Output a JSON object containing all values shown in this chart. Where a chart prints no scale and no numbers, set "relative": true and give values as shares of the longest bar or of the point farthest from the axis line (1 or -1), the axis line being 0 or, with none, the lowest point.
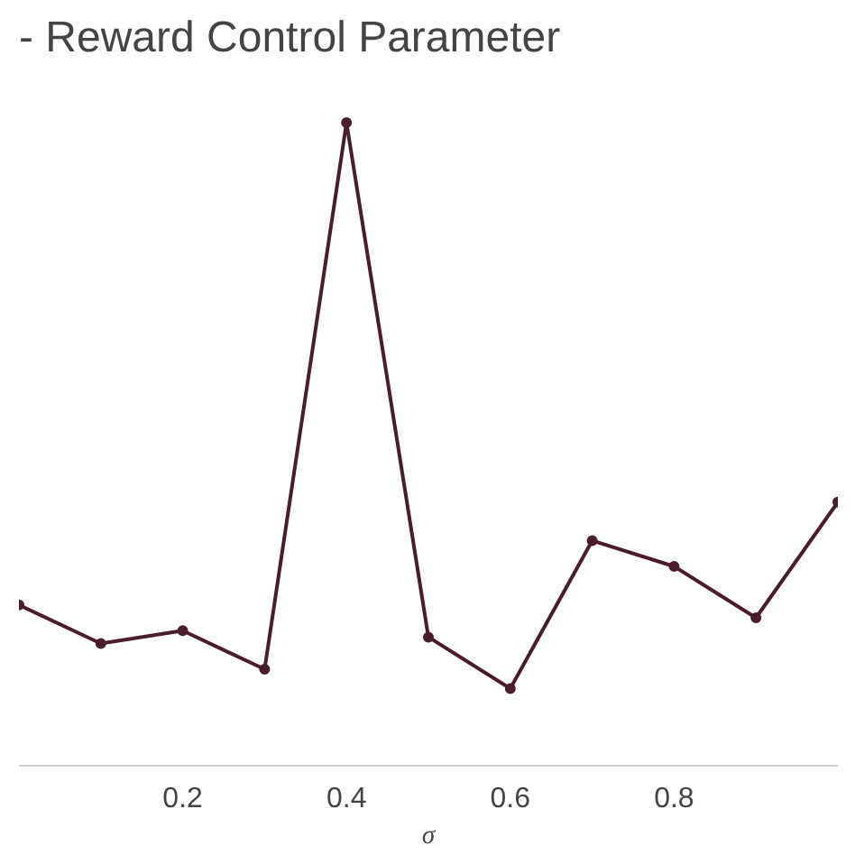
{
  "chart_data": {
    "type": "line",
    "title": "- Reward Control Parameter",
    "xlabel": "σ",
    "relative": true,
    "x": [
      0.0,
      0.1,
      0.2,
      0.3,
      0.4,
      0.5,
      0.6,
      0.7,
      0.8,
      0.9,
      1.0
    ],
    "series": [
      {
        "color": "#4b1d2b",
        "values": [
          0.25,
          0.19,
          0.21,
          0.15,
          1,
          0.2,
          0.12,
          0.35,
          0.31,
          0.23,
          0.41
        ]
      }
    ],
    "xlim": [
      0,
      1
    ],
    "xticks": [
      0.2,
      0.4,
      0.6,
      0.8
    ],
    "grid": false,
    "marker": "circle",
    "line_style": "solid"
  }
}
